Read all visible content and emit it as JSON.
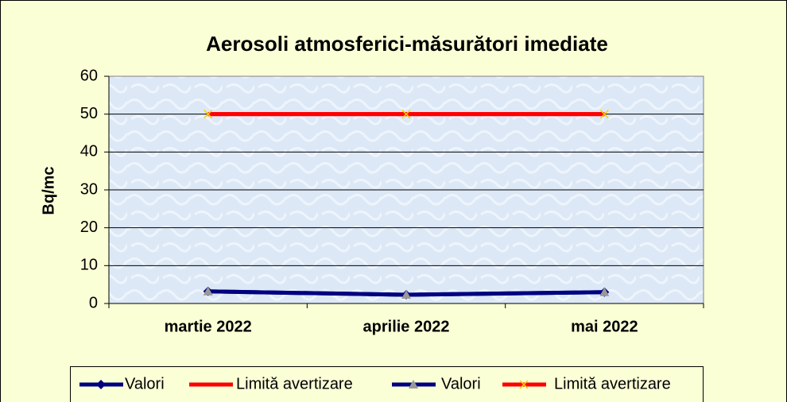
{
  "chart_data": {
    "type": "line",
    "title": "Aerosoli atmosferici-măsurători imediate",
    "y_label": "Bq/mc",
    "categories": [
      "martie 2022",
      "aprilie 2022",
      "mai 2022"
    ],
    "series": [
      {
        "name": "Valori",
        "color": "#000080",
        "marker": "diamond",
        "marker_color": "#000080",
        "values": [
          3.2,
          2.3,
          3.0
        ]
      },
      {
        "name": "Limită avertizare",
        "color": "#ff0000",
        "marker": "none",
        "marker_color": "#ff0000",
        "values": [
          50,
          50,
          50
        ]
      },
      {
        "name": "Valori",
        "color": "#000080",
        "marker": "triangle",
        "marker_color": "#999999",
        "values": [
          3.2,
          2.3,
          3.0
        ]
      },
      {
        "name": "Limită avertizare",
        "color": "#ff0000",
        "marker": "x",
        "marker_color": "#ffcc00",
        "values": [
          50,
          50,
          50
        ]
      }
    ],
    "ylim": [
      0,
      60
    ],
    "yticks": [
      0,
      10,
      20,
      30,
      40,
      50,
      60
    ],
    "grid": true,
    "legend": "bottom"
  }
}
